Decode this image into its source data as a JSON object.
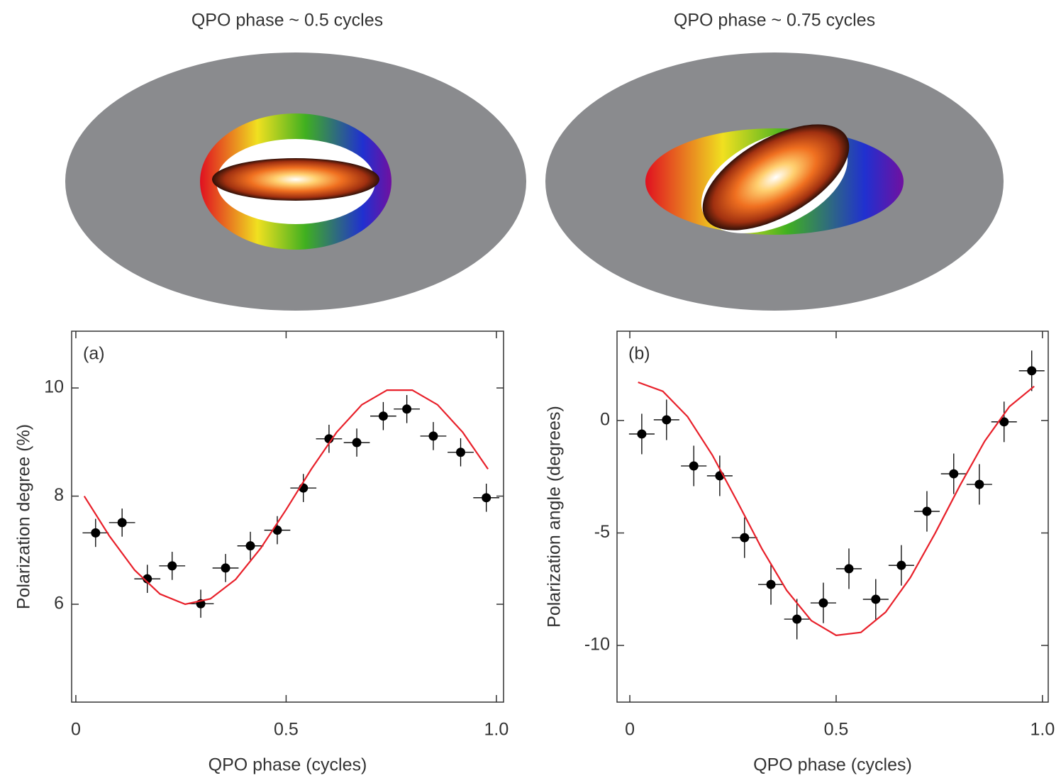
{
  "illustrations": [
    {
      "title": "QPO phase ~ 0.5 cycles",
      "color": "#e8202a"
    },
    {
      "title": "QPO phase ~ 0.75 cycles",
      "color": "#3a44a8"
    }
  ],
  "chart_data": [
    {
      "type": "scatter",
      "panel_label": "(a)",
      "xlabel": "QPO phase (cycles)",
      "ylabel": "Polarization degree (%)",
      "xlim": [
        -0.01,
        1.017
      ],
      "ylim": [
        4.19,
        11.05
      ],
      "xticks": [
        0,
        0.5,
        {
          "value": 1,
          "label": "1.0"
        }
      ],
      "yticks": [
        6,
        8,
        10
      ],
      "series": [
        {
          "type": "errorbar",
          "color": "#000000",
          "x": [
            0.047,
            0.11,
            0.17,
            0.229,
            0.297,
            0.356,
            0.415,
            0.479,
            0.541,
            0.602,
            0.668,
            0.731,
            0.787,
            0.85,
            0.915,
            0.976
          ],
          "values": [
            7.32,
            7.51,
            6.47,
            6.71,
            6.01,
            6.67,
            7.08,
            7.37,
            8.15,
            9.06,
            8.99,
            9.48,
            9.61,
            9.11,
            8.81,
            7.97
          ],
          "yerr": 0.26,
          "xerr": 0.031
        },
        {
          "type": "line",
          "color": "#e8202a",
          "x": [
            0.02,
            0.08,
            0.14,
            0.2,
            0.26,
            0.32,
            0.38,
            0.44,
            0.5,
            0.56,
            0.62,
            0.68,
            0.74,
            0.8,
            0.86,
            0.92,
            0.98
          ],
          "values": [
            8.0,
            7.26,
            6.63,
            6.19,
            6.0,
            6.1,
            6.46,
            7.04,
            7.75,
            8.5,
            9.18,
            9.69,
            9.96,
            9.96,
            9.69,
            9.18,
            8.5
          ]
        }
      ]
    },
    {
      "type": "scatter",
      "panel_label": "(b)",
      "xlabel": "QPO phase (cycles)",
      "ylabel": "Polarization angle (degrees)",
      "xlim": [
        -0.031,
        1.014
      ],
      "ylim": [
        -12.52,
        3.97
      ],
      "xticks": [
        0,
        0.5,
        {
          "value": 1,
          "label": "1.0"
        }
      ],
      "yticks": [
        -10,
        -5,
        0
      ],
      "series": [
        {
          "type": "errorbar",
          "color": "#000000",
          "x": [
            0.029,
            0.089,
            0.155,
            0.218,
            0.278,
            0.342,
            0.405,
            0.469,
            0.531,
            0.596,
            0.658,
            0.72,
            0.785,
            0.847,
            0.907,
            0.974
          ],
          "values": [
            -0.6,
            0.03,
            -2.02,
            -2.46,
            -5.21,
            -7.29,
            -8.83,
            -8.11,
            -6.59,
            -7.95,
            -6.44,
            -4.04,
            -2.37,
            -2.84,
            -0.06,
            2.21
          ],
          "yerr": 0.9,
          "xerr": 0.031
        },
        {
          "type": "line",
          "color": "#e8202a",
          "x": [
            0.02,
            0.08,
            0.14,
            0.2,
            0.26,
            0.32,
            0.38,
            0.44,
            0.5,
            0.56,
            0.62,
            0.68,
            0.74,
            0.8,
            0.86,
            0.92,
            0.98
          ],
          "values": [
            1.7,
            1.3,
            0.17,
            -1.54,
            -3.59,
            -5.7,
            -7.55,
            -8.9,
            -9.55,
            -9.42,
            -8.52,
            -6.98,
            -5.01,
            -2.89,
            -0.92,
            0.62,
            1.52
          ]
        }
      ]
    }
  ]
}
